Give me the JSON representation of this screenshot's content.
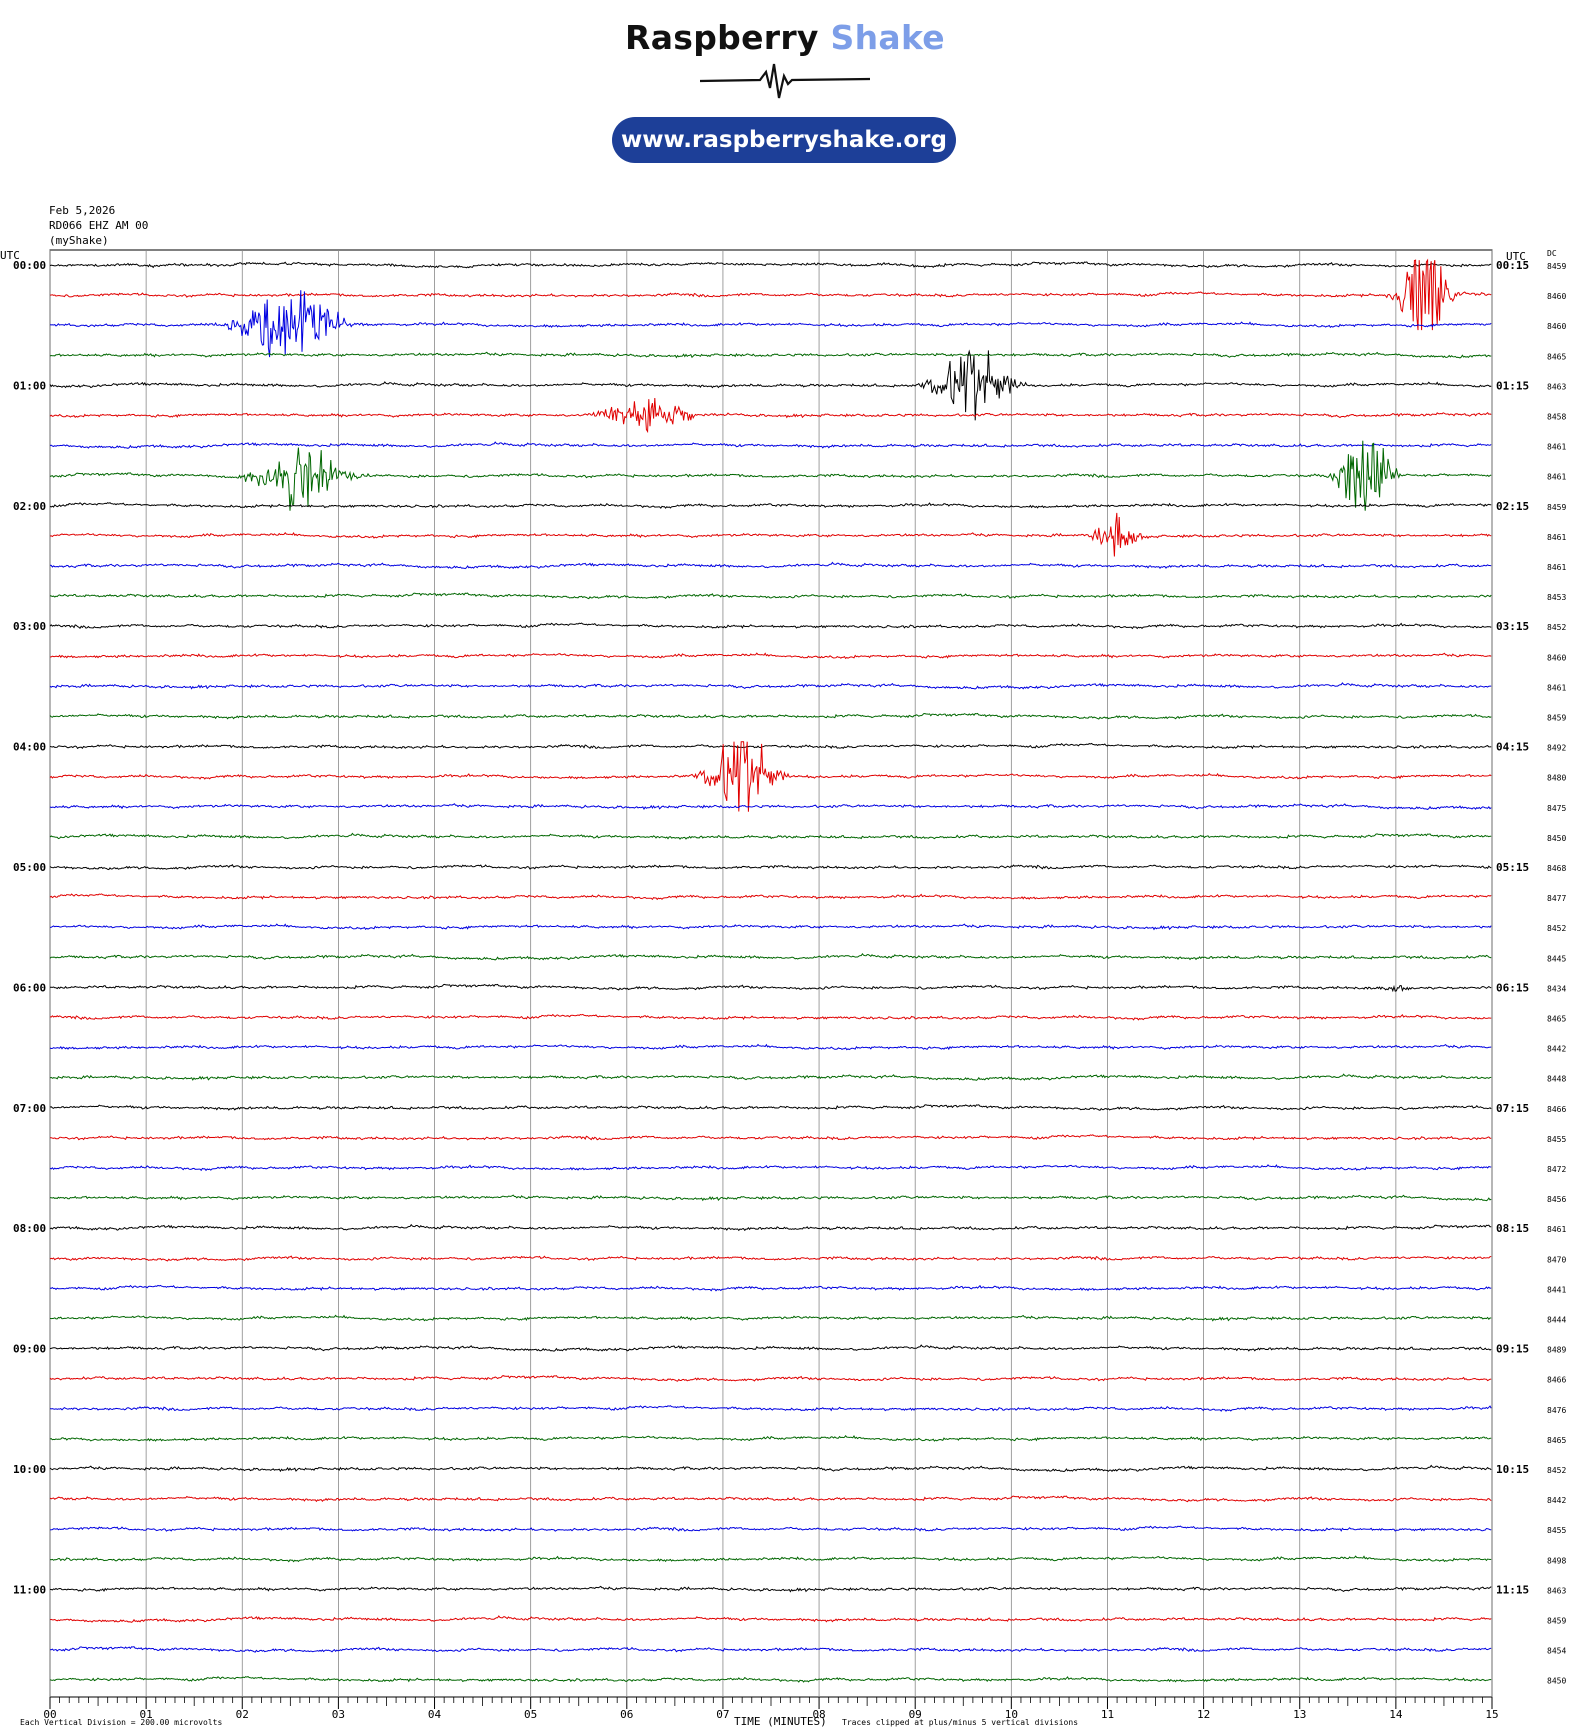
{
  "header": {
    "brand_word1": "Raspberry",
    "brand_word2": "Shake",
    "url": "www.raspberryshake.org",
    "brand_color": "#1d3f98",
    "accent_color": "#7d9ee8"
  },
  "chart_data": {
    "type": "helicorder",
    "info_lines": [
      "Feb 5,2026",
      "RD066 EHZ AM 00",
      "(myShake)"
    ],
    "left_axis_title": "UTC",
    "right_axis_title": "UTC",
    "dc_title": "DC",
    "xlabel": "TIME (MINUTES)",
    "xlim": [
      0,
      15
    ],
    "x_ticks": [
      "00",
      "01",
      "02",
      "03",
      "04",
      "05",
      "06",
      "07",
      "08",
      "09",
      "10",
      "11",
      "12",
      "13",
      "14",
      "15"
    ],
    "left_labels": [
      "00:00",
      "01:00",
      "02:00",
      "03:00",
      "04:00",
      "05:00",
      "06:00",
      "07:00",
      "08:00",
      "09:00",
      "10:00",
      "11:00"
    ],
    "right_labels": [
      "00:15",
      "01:15",
      "02:15",
      "03:15",
      "04:15",
      "05:15",
      "06:15",
      "07:15",
      "08:15",
      "09:15",
      "10:15",
      "11:15"
    ],
    "dc_values": [
      8459,
      8460,
      8460,
      8465,
      8463,
      8458,
      8461,
      8461,
      8459,
      8461,
      8461,
      8453,
      8452,
      8460,
      8461,
      8459,
      8492,
      8480,
      8475,
      8450,
      8468,
      8477,
      8452,
      8445,
      8434,
      8465,
      8442,
      8448,
      8466,
      8455,
      8472,
      8456,
      8461,
      8470,
      8441,
      8444,
      8489,
      8466,
      8476,
      8465,
      8452,
      8442,
      8455,
      8498,
      8463,
      8459,
      8454,
      8450
    ],
    "trace_colors": [
      "#000000",
      "#e00000",
      "#0000e0",
      "#006600"
    ],
    "trace_minutes": 15,
    "events": [
      {
        "trace": 1,
        "minute": 14.3,
        "amp": 5,
        "duration": 1.0
      },
      {
        "trace": 2,
        "minute": 2.5,
        "amp": 4,
        "duration": 1.8
      },
      {
        "trace": 4,
        "minute": 9.6,
        "amp": 4,
        "duration": 1.4
      },
      {
        "trace": 5,
        "minute": 6.2,
        "amp": 2,
        "duration": 1.6
      },
      {
        "trace": 7,
        "minute": 2.6,
        "amp": 3,
        "duration": 1.8
      },
      {
        "trace": 7,
        "minute": 13.7,
        "amp": 5,
        "duration": 1.0
      },
      {
        "trace": 9,
        "minute": 11.1,
        "amp": 2.5,
        "duration": 0.8
      },
      {
        "trace": 17,
        "minute": 7.2,
        "amp": 5,
        "duration": 1.2
      },
      {
        "trace": 24,
        "minute": 14.0,
        "amp": 0.4,
        "duration": 0.6
      }
    ],
    "footer_left": "Each Vertical Division =  200.00 microvolts",
    "footer_right": "Traces clipped at plus/minus 5 vertical divisions"
  }
}
